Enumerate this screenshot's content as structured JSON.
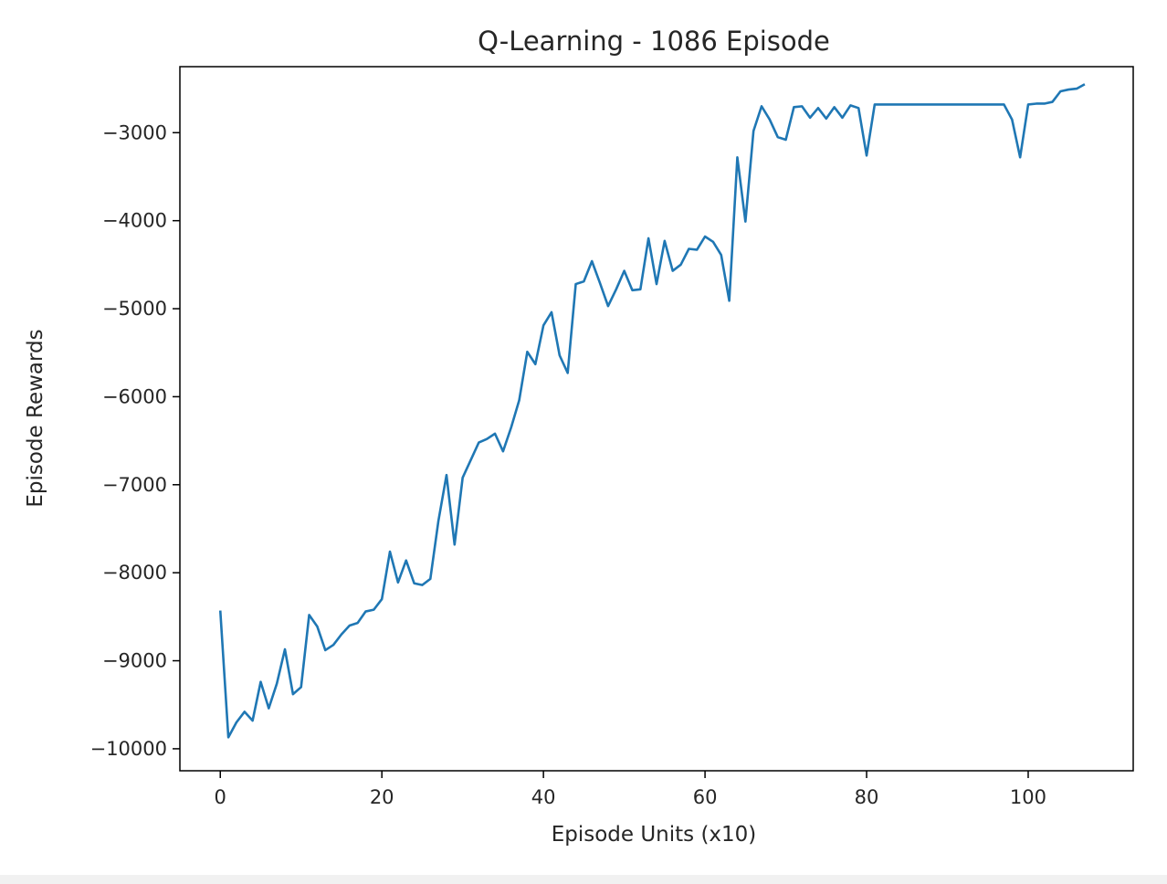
{
  "chart_data": {
    "type": "line",
    "title": "Q-Learning - 1086 Episode",
    "xlabel": "Episode Units (x10)",
    "ylabel": "Episode Rewards",
    "xlim": [
      -5,
      113
    ],
    "ylim": [
      -10250,
      -2250
    ],
    "xticks": [
      0,
      20,
      40,
      60,
      80,
      100
    ],
    "yticks": [
      -10000,
      -9000,
      -8000,
      -7000,
      -6000,
      -5000,
      -4000,
      -3000
    ],
    "xtick_labels": [
      "0",
      "20",
      "40",
      "60",
      "80",
      "100"
    ],
    "ytick_labels": [
      "−10000",
      "−9000",
      "−8000",
      "−7000",
      "−6000",
      "−5000",
      "−4000",
      "−3000"
    ],
    "grid": false,
    "line_color": "#1f77b4",
    "x": [
      0,
      1,
      2,
      3,
      4,
      5,
      6,
      7,
      8,
      9,
      10,
      11,
      12,
      13,
      14,
      15,
      16,
      17,
      18,
      19,
      20,
      21,
      22,
      23,
      24,
      25,
      26,
      27,
      28,
      29,
      30,
      31,
      32,
      33,
      34,
      35,
      36,
      37,
      38,
      39,
      40,
      41,
      42,
      43,
      44,
      45,
      46,
      47,
      48,
      49,
      50,
      51,
      52,
      53,
      54,
      55,
      56,
      57,
      58,
      59,
      60,
      61,
      62,
      63,
      64,
      65,
      66,
      67,
      68,
      69,
      70,
      71,
      72,
      73,
      74,
      75,
      76,
      77,
      78,
      79,
      80,
      81,
      82,
      83,
      84,
      85,
      86,
      87,
      88,
      89,
      90,
      91,
      92,
      93,
      94,
      95,
      96,
      97,
      98,
      99,
      100,
      101,
      102,
      103,
      104,
      105,
      106,
      107
    ],
    "y": [
      -8430,
      -9870,
      -9700,
      -9580,
      -9680,
      -9240,
      -9540,
      -9260,
      -8870,
      -9380,
      -9300,
      -8480,
      -8610,
      -8880,
      -8820,
      -8700,
      -8600,
      -8570,
      -8440,
      -8420,
      -8300,
      -7760,
      -8110,
      -7860,
      -8120,
      -8140,
      -8070,
      -7410,
      -6890,
      -7680,
      -6920,
      -6720,
      -6520,
      -6480,
      -6420,
      -6620,
      -6350,
      -6040,
      -5490,
      -5630,
      -5190,
      -5040,
      -5530,
      -5730,
      -4720,
      -4690,
      -4460,
      -4710,
      -4970,
      -4780,
      -4570,
      -4790,
      -4780,
      -4200,
      -4720,
      -4230,
      -4570,
      -4500,
      -4320,
      -4330,
      -4180,
      -4240,
      -4390,
      -4910,
      -3280,
      -4010,
      -2980,
      -2700,
      -2850,
      -3050,
      -3080,
      -2710,
      -2700,
      -2830,
      -2720,
      -2840,
      -2710,
      -2830,
      -2690,
      -2720,
      -3260,
      -2680,
      -2680,
      -2680,
      -2680,
      -2680,
      -2680,
      -2680,
      -2680,
      -2680,
      -2680,
      -2680,
      -2680,
      -2680,
      -2680,
      -2680,
      -2680,
      -2680,
      -2850,
      -3280,
      -2680,
      -2670,
      -2670,
      -2650,
      -2530,
      -2510,
      -2500,
      -2450
    ]
  }
}
